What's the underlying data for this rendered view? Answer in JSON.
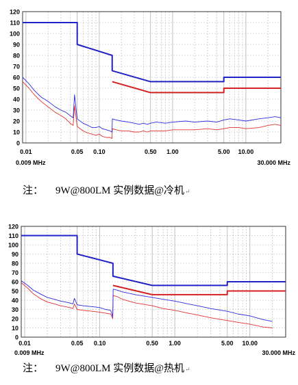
{
  "captions": [
    {
      "prefix": "注：",
      "text": "9W@800LM  实例数据@冷机",
      "mark": "↵"
    },
    {
      "prefix": "注：",
      "text": "9W@800LM  实例数据@热机",
      "mark": "↵"
    }
  ],
  "colors": {
    "limit_qp": "#1f22c4",
    "limit_avg": "#d42020",
    "measured_qp": "#2a2ae0",
    "measured_avg": "#e23030",
    "grid": "#b8b8b8",
    "frame": "#333333"
  },
  "chart_data": [
    {
      "type": "line",
      "x_scale": "log",
      "xlim": [
        0.009,
        30
      ],
      "ylim": [
        0,
        120
      ],
      "y_ticks": [
        0,
        10,
        20,
        30,
        40,
        50,
        60,
        70,
        80,
        90,
        100,
        110,
        120
      ],
      "x_tick_labels": [
        {
          "value": 0.01,
          "label": "0.01"
        },
        {
          "value": 0.05,
          "label": "0.05"
        },
        {
          "value": 0.1,
          "label": "0.10"
        },
        {
          "value": 0.5,
          "label": "0.50"
        },
        {
          "value": 1,
          "label": "1.00"
        },
        {
          "value": 5,
          "label": "5.00"
        },
        {
          "value": 10,
          "label": "10.00"
        }
      ],
      "x_min_label": "0.009 MHz",
      "x_max_label": "30.000 MHz",
      "series": [
        {
          "role": "limit_qp",
          "x": [
            0.009,
            0.05,
            0.05,
            0.15,
            0.15,
            0.5,
            5,
            5,
            30
          ],
          "y": [
            110,
            110,
            90,
            80,
            66,
            56,
            56,
            60,
            60
          ]
        },
        {
          "role": "limit_avg",
          "x": [
            0.15,
            0.5,
            5,
            5,
            30
          ],
          "y": [
            56,
            46,
            46,
            50,
            50
          ]
        },
        {
          "role": "measured_qp",
          "x": [
            0.009,
            0.011,
            0.013,
            0.016,
            0.02,
            0.025,
            0.03,
            0.035,
            0.04,
            0.044,
            0.046,
            0.05,
            0.06,
            0.07,
            0.08,
            0.09,
            0.1,
            0.11,
            0.125,
            0.14,
            0.149,
            0.151,
            0.17,
            0.2,
            0.25,
            0.3,
            0.35,
            0.4,
            0.45,
            0.5,
            0.6,
            0.8,
            1,
            1.5,
            2,
            3,
            4,
            5,
            6,
            8,
            10,
            15,
            20,
            25,
            30
          ],
          "y": [
            60,
            54,
            48,
            42,
            38,
            33,
            30,
            28,
            25,
            23,
            44,
            22,
            18,
            16,
            14,
            14,
            15,
            13,
            12,
            11,
            10,
            22,
            21,
            20,
            19,
            18,
            17,
            18,
            17,
            18,
            19,
            18,
            19,
            20,
            19,
            20,
            19,
            21,
            22,
            21,
            20,
            22,
            23,
            24,
            23
          ]
        },
        {
          "role": "measured_avg",
          "x": [
            0.009,
            0.011,
            0.013,
            0.016,
            0.02,
            0.025,
            0.03,
            0.035,
            0.04,
            0.044,
            0.046,
            0.05,
            0.06,
            0.07,
            0.08,
            0.09,
            0.1,
            0.11,
            0.125,
            0.14,
            0.149,
            0.151,
            0.17,
            0.2,
            0.25,
            0.3,
            0.35,
            0.4,
            0.45,
            0.5,
            0.6,
            0.8,
            1,
            1.5,
            2,
            3,
            4,
            5,
            6,
            8,
            10,
            15,
            20,
            25,
            30
          ],
          "y": [
            56,
            50,
            44,
            38,
            33,
            28,
            25,
            22,
            18,
            16,
            34,
            15,
            11,
            9,
            8,
            7,
            8,
            6,
            5,
            5,
            4,
            13,
            12,
            11,
            11,
            10,
            10,
            11,
            10,
            11,
            11,
            11,
            12,
            12,
            12,
            13,
            12,
            13,
            14,
            14,
            13,
            14,
            16,
            17,
            16
          ]
        }
      ]
    },
    {
      "type": "line",
      "x_scale": "log",
      "xlim": [
        0.009,
        30
      ],
      "ylim": [
        0,
        120
      ],
      "y_ticks": [
        0,
        10,
        20,
        30,
        40,
        50,
        60,
        70,
        80,
        90,
        100,
        110,
        120
      ],
      "x_tick_labels": [
        {
          "value": 0.01,
          "label": "0.01"
        },
        {
          "value": 0.05,
          "label": "0.05"
        },
        {
          "value": 0.1,
          "label": "0.10"
        },
        {
          "value": 0.5,
          "label": "0.50"
        },
        {
          "value": 1,
          "label": "1.00"
        },
        {
          "value": 5,
          "label": "5.00"
        },
        {
          "value": 10,
          "label": "10.00"
        }
      ],
      "x_min_label": "0.009 MHz",
      "x_max_label": "30.000 MHz",
      "series": [
        {
          "role": "limit_qp",
          "x": [
            0.009,
            0.05,
            0.05,
            0.15,
            0.15,
            0.5,
            5,
            5,
            30
          ],
          "y": [
            110,
            110,
            90,
            80,
            66,
            56,
            56,
            60,
            60
          ]
        },
        {
          "role": "limit_avg",
          "x": [
            0.15,
            0.5,
            5,
            5,
            30
          ],
          "y": [
            56,
            46,
            46,
            50,
            50
          ]
        },
        {
          "role": "measured_qp",
          "x": [
            0.009,
            0.011,
            0.013,
            0.016,
            0.02,
            0.025,
            0.03,
            0.035,
            0.04,
            0.044,
            0.046,
            0.05,
            0.06,
            0.08,
            0.1,
            0.12,
            0.14,
            0.149,
            0.151,
            0.17,
            0.2,
            0.3,
            0.5,
            0.7,
            1,
            1.5,
            2,
            3,
            5,
            7,
            10,
            15,
            20
          ],
          "y": [
            61,
            56,
            51,
            47,
            43,
            41,
            39,
            38,
            37,
            36,
            42,
            35,
            34,
            33,
            32,
            30,
            29,
            22,
            52,
            51,
            49,
            46,
            43,
            41,
            39,
            36,
            34,
            31,
            28,
            25,
            23,
            19,
            17
          ]
        },
        {
          "role": "measured_avg",
          "x": [
            0.009,
            0.011,
            0.013,
            0.016,
            0.02,
            0.025,
            0.03,
            0.035,
            0.04,
            0.044,
            0.046,
            0.05,
            0.06,
            0.08,
            0.1,
            0.12,
            0.14,
            0.149,
            0.151,
            0.17,
            0.2,
            0.3,
            0.5,
            0.7,
            1,
            1.5,
            2,
            3,
            5,
            7,
            10,
            15,
            20
          ],
          "y": [
            59,
            53,
            47,
            42,
            38,
            36,
            34,
            33,
            32,
            31,
            36,
            30,
            29,
            28,
            27,
            26,
            25,
            20,
            45,
            44,
            41,
            37,
            34,
            31,
            29,
            26,
            24,
            21,
            18,
            16,
            14,
            11,
            10
          ]
        }
      ]
    }
  ]
}
